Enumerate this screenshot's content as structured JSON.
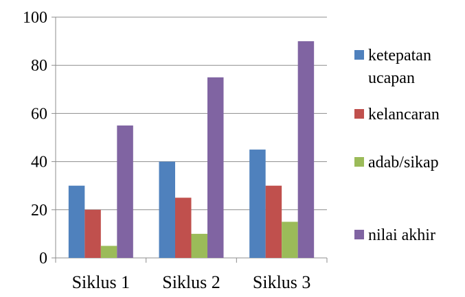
{
  "chart_data": {
    "type": "bar",
    "title": "",
    "xlabel": "",
    "ylabel": "",
    "ylim": [
      0,
      100
    ],
    "yticks": [
      0,
      20,
      40,
      60,
      80,
      100
    ],
    "grid": true,
    "legend_position": "right",
    "categories": [
      "Siklus 1",
      "Siklus 2",
      "Siklus 3"
    ],
    "series": [
      {
        "name": "ketepatan ucapan",
        "legend_lines": [
          "ketepatan",
          "ucapan"
        ],
        "color": "#4F81BD",
        "values": [
          30,
          40,
          45
        ]
      },
      {
        "name": "kelancaran",
        "legend_lines": [
          "kelancaran"
        ],
        "color": "#C0504D",
        "values": [
          20,
          25,
          30
        ]
      },
      {
        "name": "adab/sikap",
        "legend_lines": [
          "adab/sikap"
        ],
        "color": "#9BBB59",
        "values": [
          5,
          10,
          15
        ]
      },
      {
        "name": "nilai akhir",
        "legend_lines": [
          "nilai akhir"
        ],
        "color": "#8064A2",
        "values": [
          55,
          75,
          90
        ]
      }
    ]
  }
}
